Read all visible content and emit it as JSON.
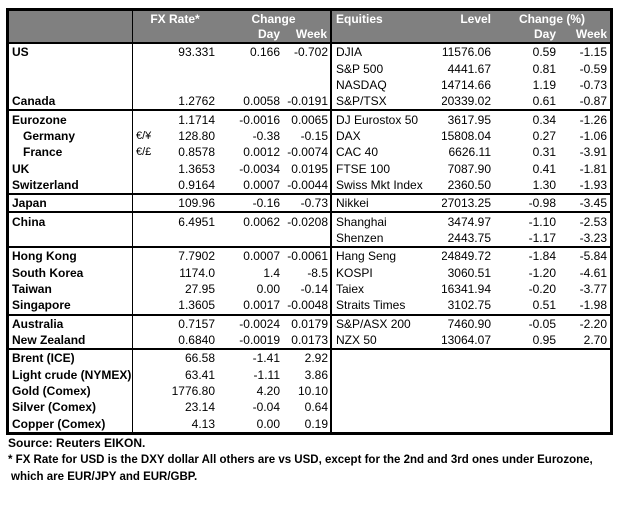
{
  "colors": {
    "header_bg": "#808080",
    "header_text": "#ffffff",
    "border": "#000000",
    "body_bg": "#ffffff",
    "text": "#000000"
  },
  "fx_header": {
    "rate": "FX Rate*",
    "change": "Change",
    "day": "Day",
    "week": "Week"
  },
  "equities_header": {
    "title": "Equities",
    "level": "Level",
    "change_pct": "Change (%)",
    "day": "Day",
    "week": "Week"
  },
  "rows": [
    {
      "ln": "US",
      "sym": "",
      "rate": "93.331",
      "day": "0.166",
      "week": "-0.702",
      "rn": "DJIA",
      "level": "11576.06",
      "rday": "0.59",
      "rweek": "-1.15",
      "sep": false,
      "indent": false
    },
    {
      "ln": "",
      "sym": "",
      "rate": "",
      "day": "",
      "week": "",
      "rn": "S&P 500",
      "level": "4441.67",
      "rday": "0.81",
      "rweek": "-0.59",
      "sep": false,
      "indent": false
    },
    {
      "ln": "",
      "sym": "",
      "rate": "",
      "day": "",
      "week": "",
      "rn": "NASDAQ",
      "level": "14714.66",
      "rday": "1.19",
      "rweek": "-0.73",
      "sep": false,
      "indent": false
    },
    {
      "ln": "Canada",
      "sym": "",
      "rate": "1.2762",
      "day": "0.0058",
      "week": "-0.0191",
      "rn": "S&P/TSX",
      "level": "20339.02",
      "rday": "0.61",
      "rweek": "-0.87",
      "sep": false,
      "indent": false
    },
    {
      "ln": "Eurozone",
      "sym": "",
      "rate": "1.1714",
      "day": "-0.0016",
      "week": "0.0065",
      "rn": "DJ Eurostox 50",
      "level": "3617.95",
      "rday": "0.34",
      "rweek": "-1.26",
      "sep": true,
      "indent": false
    },
    {
      "ln": "Germany",
      "sym": "€/¥",
      "rate": "128.80",
      "day": "-0.38",
      "week": "-0.15",
      "rn": "DAX",
      "level": "15808.04",
      "rday": "0.27",
      "rweek": "-1.06",
      "sep": false,
      "indent": true
    },
    {
      "ln": "France",
      "sym": "€/£",
      "rate": "0.8578",
      "day": "0.0012",
      "week": "-0.0074",
      "rn": "CAC 40",
      "level": "6626.11",
      "rday": "0.31",
      "rweek": "-3.91",
      "sep": false,
      "indent": true
    },
    {
      "ln": "UK",
      "sym": "",
      "rate": "1.3653",
      "day": "-0.0034",
      "week": "0.0195",
      "rn": "FTSE 100",
      "level": "7087.90",
      "rday": "0.41",
      "rweek": "-1.81",
      "sep": false,
      "indent": false
    },
    {
      "ln": "Switzerland",
      "sym": "",
      "rate": "0.9164",
      "day": "0.0007",
      "week": "-0.0044",
      "rn": "Swiss Mkt Index",
      "level": "2360.50",
      "rday": "1.30",
      "rweek": "-1.93",
      "sep": false,
      "indent": false
    },
    {
      "ln": "Japan",
      "sym": "",
      "rate": "109.96",
      "day": "-0.16",
      "week": "-0.73",
      "rn": "Nikkei",
      "level": "27013.25",
      "rday": "-0.98",
      "rweek": "-3.45",
      "sep": true,
      "indent": false
    },
    {
      "ln": "China",
      "sym": "",
      "rate": "6.4951",
      "day": "0.0062",
      "week": "-0.0208",
      "rn": "Shanghai",
      "level": "3474.97",
      "rday": "-1.10",
      "rweek": "-2.53",
      "sep": true,
      "indent": false
    },
    {
      "ln": "",
      "sym": "",
      "rate": "",
      "day": "",
      "week": "",
      "rn": "Shenzen",
      "level": "2443.75",
      "rday": "-1.17",
      "rweek": "-3.23",
      "sep": false,
      "indent": false
    },
    {
      "ln": "Hong Kong",
      "sym": "",
      "rate": "7.7902",
      "day": "0.0007",
      "week": "-0.0061",
      "rn": "Hang Seng",
      "level": "24849.72",
      "rday": "-1.84",
      "rweek": "-5.84",
      "sep": true,
      "indent": false
    },
    {
      "ln": "South Korea",
      "sym": "",
      "rate": "1174.0",
      "day": "1.4",
      "week": "-8.5",
      "rn": "KOSPI",
      "level": "3060.51",
      "rday": "-1.20",
      "rweek": "-4.61",
      "sep": false,
      "indent": false
    },
    {
      "ln": "Taiwan",
      "sym": "",
      "rate": "27.95",
      "day": "0.00",
      "week": "-0.14",
      "rn": "Taiex",
      "level": "16341.94",
      "rday": "-0.20",
      "rweek": "-3.77",
      "sep": false,
      "indent": false
    },
    {
      "ln": "Singapore",
      "sym": "",
      "rate": "1.3605",
      "day": "0.0017",
      "week": "-0.0048",
      "rn": "Straits Times",
      "level": "3102.75",
      "rday": "0.51",
      "rweek": "-1.98",
      "sep": false,
      "indent": false
    },
    {
      "ln": "Australia",
      "sym": "",
      "rate": "0.7157",
      "day": "-0.0024",
      "week": "0.0179",
      "rn": "S&P/ASX 200",
      "level": "7460.90",
      "rday": "-0.05",
      "rweek": "-2.20",
      "sep": true,
      "indent": false
    },
    {
      "ln": "New Zealand",
      "sym": "",
      "rate": "0.6840",
      "day": "-0.0019",
      "week": "0.0173",
      "rn": "NZX 50",
      "level": "13064.07",
      "rday": "0.95",
      "rweek": "2.70",
      "sep": false,
      "indent": false
    },
    {
      "ln": "Brent (ICE)",
      "sym": "",
      "rate": "66.58",
      "day": "-1.41",
      "week": "2.92",
      "rn": "",
      "level": "",
      "rday": "",
      "rweek": "",
      "sep": true,
      "indent": false
    },
    {
      "ln": "Light crude (NYMEX)",
      "sym": "",
      "rate": "63.41",
      "day": "-1.11",
      "week": "3.86",
      "rn": "",
      "level": "",
      "rday": "",
      "rweek": "",
      "sep": false,
      "indent": false
    },
    {
      "ln": "Gold (Comex)",
      "sym": "",
      "rate": "1776.80",
      "day": "4.20",
      "week": "10.10",
      "rn": "",
      "level": "",
      "rday": "",
      "rweek": "",
      "sep": false,
      "indent": false
    },
    {
      "ln": "Silver (Comex)",
      "sym": "",
      "rate": "23.14",
      "day": "-0.04",
      "week": "0.64",
      "rn": "",
      "level": "",
      "rday": "",
      "rweek": "",
      "sep": false,
      "indent": false
    },
    {
      "ln": "Copper (Comex)",
      "sym": "",
      "rate": "4.13",
      "day": "0.00",
      "week": "0.19",
      "rn": "",
      "level": "",
      "rday": "",
      "rweek": "",
      "sep": false,
      "indent": false
    }
  ],
  "footer": {
    "source": "Source:  Reuters EIKON.",
    "footnote_line1": "* FX Rate for USD is the DXY dollar  All others are vs USD, except for the 2nd and 3rd ones under Eurozone,",
    "footnote_line2": "which are EUR/JPY and EUR/GBP."
  }
}
